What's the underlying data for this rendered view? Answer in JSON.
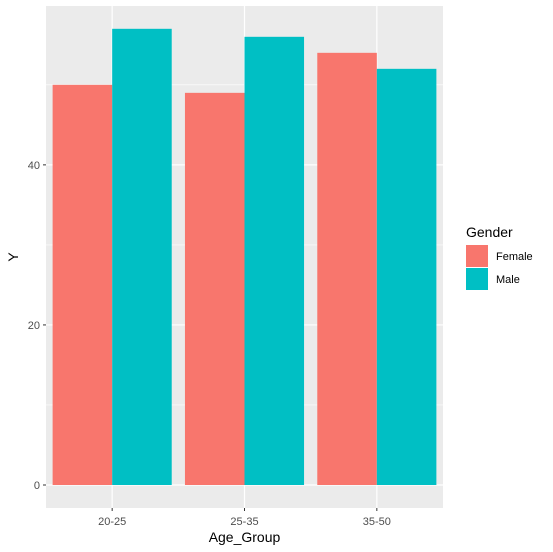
{
  "chart_data": {
    "type": "bar",
    "title": "",
    "xlabel": "Age_Group",
    "ylabel": "Y",
    "categories": [
      "20-25",
      "25-35",
      "35-50"
    ],
    "series": [
      {
        "name": "Female",
        "color": "#F8766D",
        "values": [
          50,
          49,
          54
        ]
      },
      {
        "name": "Male",
        "color": "#00BFC4",
        "values": [
          57,
          56,
          52
        ]
      }
    ],
    "ylim": [
      0,
      59.85
    ],
    "yticks": [
      0,
      20,
      40
    ],
    "yticks_minor": [
      10,
      30,
      50
    ],
    "grid": true,
    "panel_background": "#EBEBEB",
    "grid_color": "#FFFFFF",
    "legend": {
      "title": "Gender",
      "position": "right"
    }
  }
}
